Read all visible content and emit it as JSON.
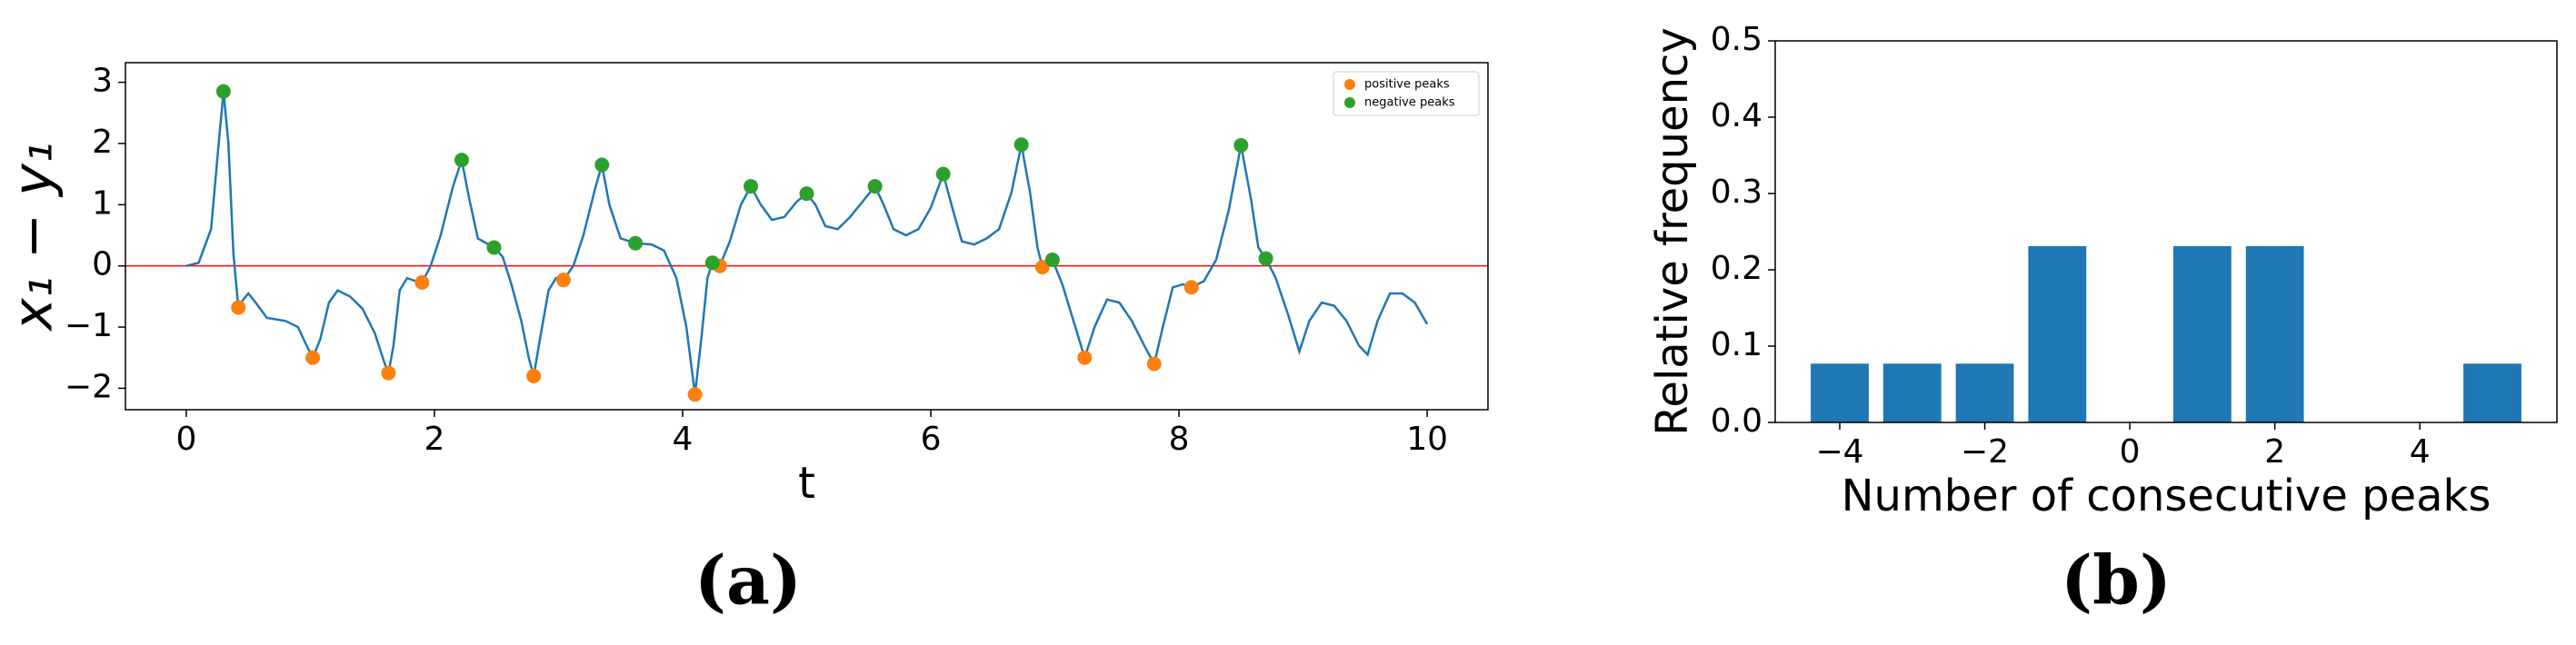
{
  "chart_data": [
    {
      "type": "line",
      "panel_label": "(a)",
      "xlabel": "t",
      "ylabel": "x₁ − y₁",
      "color": "#1f77b4",
      "x": [
        0,
        0.1,
        0.2,
        0.27,
        0.3,
        0.34,
        0.38,
        0.42,
        0.46,
        0.5,
        0.56,
        0.65,
        0.8,
        0.9,
        0.97,
        1.02,
        1.08,
        1.15,
        1.22,
        1.32,
        1.42,
        1.52,
        1.6,
        1.63,
        1.67,
        1.72,
        1.78,
        1.85,
        1.9,
        1.97,
        2.05,
        2.15,
        2.22,
        2.28,
        2.35,
        2.48,
        2.55,
        2.62,
        2.7,
        2.76,
        2.8,
        2.85,
        2.92,
        2.98,
        3.04,
        3.12,
        3.2,
        3.3,
        3.35,
        3.41,
        3.5,
        3.62,
        3.75,
        3.85,
        3.95,
        4.03,
        4.1,
        4.15,
        4.2,
        4.24,
        4.3,
        4.38,
        4.47,
        4.55,
        4.63,
        4.72,
        4.82,
        4.92,
        5.0,
        5.07,
        5.15,
        5.25,
        5.35,
        5.47,
        5.55,
        5.62,
        5.7,
        5.8,
        5.9,
        6.0,
        6.1,
        6.18,
        6.25,
        6.35,
        6.45,
        6.55,
        6.65,
        6.73,
        6.8,
        6.86,
        6.9,
        6.98,
        7.06,
        7.15,
        7.24,
        7.32,
        7.42,
        7.52,
        7.62,
        7.72,
        7.8,
        7.87,
        7.95,
        8.03,
        8.1,
        8.2,
        8.3,
        8.4,
        8.5,
        8.58,
        8.64,
        8.7,
        8.78,
        8.88,
        8.97,
        9.05,
        9.15,
        9.25,
        9.35,
        9.45,
        9.52,
        9.6,
        9.7,
        9.8,
        9.9,
        10.0
      ],
      "values": [
        0,
        0.05,
        0.6,
        2.2,
        2.85,
        2.0,
        0.2,
        -0.68,
        -0.55,
        -0.45,
        -0.6,
        -0.85,
        -0.9,
        -1.0,
        -1.3,
        -1.5,
        -1.2,
        -0.6,
        -0.4,
        -0.5,
        -0.7,
        -1.1,
        -1.6,
        -1.75,
        -1.3,
        -0.4,
        -0.2,
        -0.25,
        -0.27,
        0.0,
        0.5,
        1.3,
        1.73,
        1.1,
        0.45,
        0.3,
        0.15,
        -0.3,
        -0.9,
        -1.5,
        -1.8,
        -1.2,
        -0.4,
        -0.2,
        -0.23,
        0.0,
        0.5,
        1.3,
        1.65,
        1.0,
        0.45,
        0.37,
        0.35,
        0.25,
        -0.2,
        -1.0,
        -2.1,
        -1.2,
        -0.2,
        0.05,
        0.0,
        0.4,
        1.0,
        1.3,
        1.0,
        0.75,
        0.8,
        1.05,
        1.18,
        1.0,
        0.65,
        0.6,
        0.8,
        1.1,
        1.3,
        1.0,
        0.6,
        0.5,
        0.6,
        0.95,
        1.5,
        0.9,
        0.4,
        0.35,
        0.45,
        0.6,
        1.2,
        1.98,
        1.2,
        0.3,
        -0.02,
        0.1,
        -0.3,
        -0.9,
        -1.5,
        -1.0,
        -0.55,
        -0.6,
        -0.9,
        -1.3,
        -1.6,
        -1.0,
        -0.35,
        -0.3,
        -0.35,
        -0.25,
        0.1,
        0.9,
        1.97,
        1.1,
        0.3,
        0.12,
        -0.2,
        -0.8,
        -1.4,
        -0.9,
        -0.6,
        -0.65,
        -0.9,
        -1.3,
        -1.45,
        -0.9,
        -0.45,
        -0.45,
        -0.6,
        -0.95
      ],
      "series": [
        {
          "name": "positive peaks",
          "color": "#ff7f0e",
          "x": [
            0.42,
            1.02,
            1.63,
            1.9,
            2.8,
            3.04,
            4.1,
            4.3,
            6.9,
            7.24,
            7.8,
            8.1
          ],
          "values": [
            -0.68,
            -1.5,
            -1.75,
            -0.27,
            -1.8,
            -0.23,
            -2.1,
            0.0,
            -0.02,
            -1.5,
            -1.6,
            -0.35
          ]
        },
        {
          "name": "negative peaks",
          "color": "#2ca02c",
          "x": [
            0.3,
            2.22,
            2.48,
            3.35,
            3.62,
            4.24,
            4.55,
            5.0,
            5.55,
            6.1,
            6.73,
            6.98,
            8.5,
            8.7
          ],
          "values": [
            2.85,
            1.73,
            0.3,
            1.65,
            0.37,
            0.05,
            1.3,
            1.18,
            1.3,
            1.5,
            1.98,
            0.1,
            1.97,
            0.12
          ]
        }
      ],
      "hline": {
        "y": 0,
        "color": "#ff0000"
      },
      "legend": "upper right",
      "xlim": [
        -0.49,
        10.49
      ],
      "ylim": [
        -2.35,
        3.32
      ],
      "xticks": [
        0,
        2,
        4,
        6,
        8,
        10
      ],
      "yticks": [
        {
          "value": -2,
          "label": "−2"
        },
        {
          "value": -1,
          "label": "−1"
        },
        0,
        1,
        2,
        3
      ]
    },
    {
      "type": "bar",
      "panel_label": "(b)",
      "xlabel": "Number of consecutive peaks",
      "ylabel": "Relative frequency",
      "color": "#1f77b4",
      "bar_width": 0.8,
      "x": [
        -4,
        -3,
        -2,
        -1,
        1,
        2,
        5
      ],
      "values": [
        0.077,
        0.077,
        0.077,
        0.231,
        0.231,
        0.231,
        0.077
      ],
      "xlim": [
        -4.89,
        5.89
      ],
      "ylim": [
        0,
        0.5
      ],
      "xticks": [
        {
          "value": -4,
          "label": "−4"
        },
        {
          "value": -2,
          "label": "−2"
        },
        0,
        2,
        4
      ],
      "yticks": [
        {
          "value": 0,
          "label": "0.0"
        },
        {
          "value": 0.1,
          "label": "0.1"
        },
        {
          "value": 0.2,
          "label": "0.2"
        },
        {
          "value": 0.3,
          "label": "0.3"
        },
        {
          "value": 0.4,
          "label": "0.4"
        },
        {
          "value": 0.5,
          "label": "0.5"
        }
      ]
    }
  ]
}
